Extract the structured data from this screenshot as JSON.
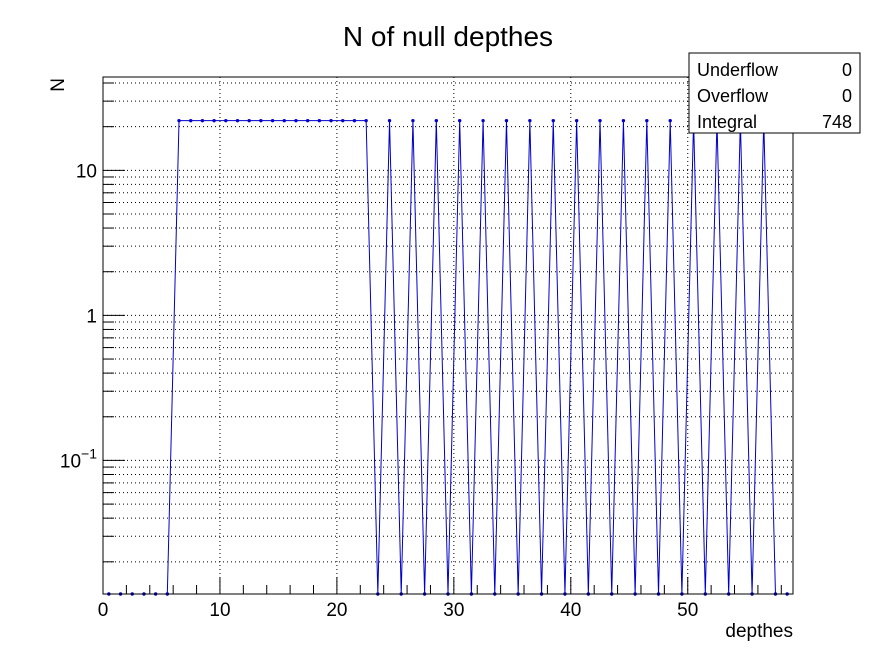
{
  "chart_data": {
    "type": "line",
    "title": "N of null depthes",
    "xlabel": "depthes",
    "ylabel": "N",
    "xlim": [
      0,
      59
    ],
    "ylim": [
      0.012,
      44
    ],
    "y_scale": "log",
    "grid": true,
    "x_ticks": [
      0,
      10,
      20,
      30,
      40,
      50
    ],
    "x_tick_labels": [
      "0",
      "10",
      "20",
      "30",
      "40",
      "50"
    ],
    "y_ticks": [
      0.1,
      1,
      10
    ],
    "y_tick_labels": [
      {
        "base": "10",
        "exp": "−1"
      },
      {
        "base": "1",
        "exp": ""
      },
      {
        "base": "10",
        "exp": ""
      }
    ],
    "series": [
      {
        "color": "#0000cc",
        "x": [
          0.5,
          1.5,
          2.5,
          3.5,
          4.5,
          5.5,
          6.5,
          7.5,
          8.5,
          9.5,
          10.5,
          11.5,
          12.5,
          13.5,
          14.5,
          15.5,
          16.5,
          17.5,
          18.5,
          19.5,
          20.5,
          21.5,
          22.5,
          23.5,
          24.5,
          25.5,
          26.5,
          27.5,
          28.5,
          29.5,
          30.5,
          31.5,
          32.5,
          33.5,
          34.5,
          35.5,
          36.5,
          37.5,
          38.5,
          39.5,
          40.5,
          41.5,
          42.5,
          43.5,
          44.5,
          45.5,
          46.5,
          47.5,
          48.5,
          49.5,
          50.5,
          51.5,
          52.5,
          53.5,
          54.5,
          55.5,
          56.5,
          57.5,
          58.5
        ],
        "y": [
          0,
          0,
          0,
          0,
          0,
          0,
          22,
          22,
          22,
          22,
          22,
          22,
          22,
          22,
          22,
          22,
          22,
          22,
          22,
          22,
          22,
          22,
          22,
          0,
          22,
          0,
          22,
          0,
          22,
          0,
          22,
          0,
          22,
          0,
          22,
          0,
          22,
          0,
          22,
          0,
          22,
          0,
          22,
          0,
          22,
          0,
          22,
          0,
          22,
          0,
          22,
          0,
          22,
          0,
          22,
          0,
          22,
          0,
          0
        ]
      }
    ],
    "stats": [
      {
        "label": "Underflow",
        "value": "0"
      },
      {
        "label": "Overflow",
        "value": "0"
      },
      {
        "label": "Integral",
        "value": "748"
      }
    ]
  }
}
